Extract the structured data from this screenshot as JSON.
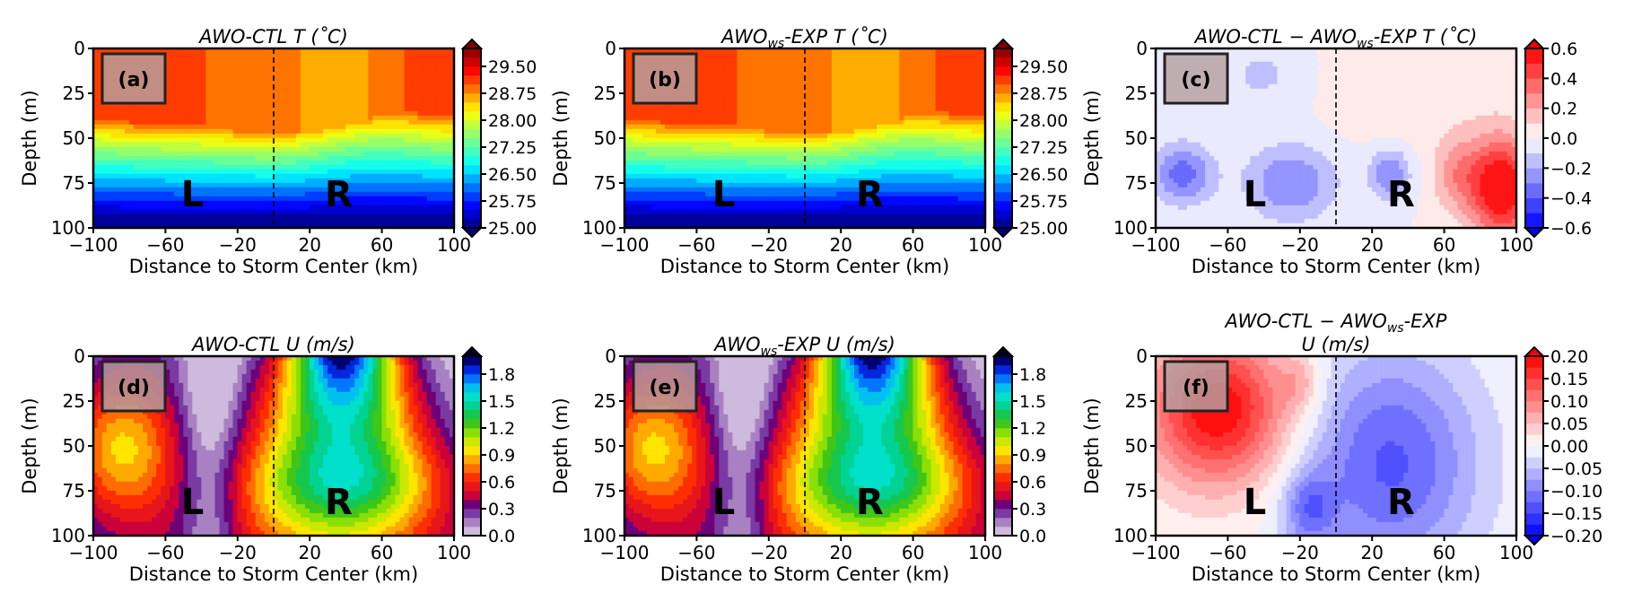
{
  "figure": {
    "xlabel": "Distance to Storm Center (km)",
    "ylabel": "Depth (m)",
    "x_ticks": [
      "−100",
      "−60",
      "−20",
      "20",
      "60",
      "100"
    ],
    "y_ticks": [
      "0",
      "25",
      "50",
      "75",
      "100"
    ]
  },
  "chart_data": [
    {
      "type": "heatmap",
      "panel_label": "(a)",
      "title": "AWO-CTL  T (˚C)",
      "xlabel": "Distance to Storm Center (km)",
      "ylabel": "Depth (m)",
      "xlim": [
        -100,
        100
      ],
      "ylim": [
        100,
        0
      ],
      "storm_center_line_x": 0,
      "annotations": [
        "L",
        "R"
      ],
      "colorbar": {
        "min": 25.0,
        "max": 30.0,
        "extend": "both",
        "colormap": "jet",
        "tick_values": [
          25.0,
          25.75,
          26.5,
          27.25,
          28.0,
          28.75,
          29.5
        ],
        "tick_labels": [
          "25.00",
          "25.75",
          "26.50",
          "27.25",
          "28.00",
          "28.75",
          "29.50"
        ]
      },
      "field_description": "mixed layer ~28.9–29.3 above ~40 m, strong thermocline cooling to ~25 at 100 m"
    },
    {
      "type": "heatmap",
      "panel_label": "(b)",
      "title": "AWOws-EXP T (˚C)",
      "xlabel": "Distance to Storm Center (km)",
      "ylabel": "Depth (m)",
      "xlim": [
        -100,
        100
      ],
      "ylim": [
        100,
        0
      ],
      "storm_center_line_x": 0,
      "annotations": [
        "L",
        "R"
      ],
      "colorbar": {
        "min": 25.0,
        "max": 30.0,
        "extend": "both",
        "colormap": "jet",
        "tick_values": [
          25.0,
          25.75,
          26.5,
          27.25,
          28.0,
          28.75,
          29.5
        ],
        "tick_labels": [
          "25.00",
          "25.75",
          "26.50",
          "27.25",
          "28.00",
          "28.75",
          "29.50"
        ]
      },
      "field_description": "nearly identical to (a)"
    },
    {
      "type": "heatmap",
      "panel_label": "(c)",
      "title": "AWO-CTL − AWOws-EXP T (˚C)",
      "xlabel": "Distance to Storm Center (km)",
      "ylabel": "Depth (m)",
      "xlim": [
        -100,
        100
      ],
      "ylim": [
        100,
        0
      ],
      "storm_center_line_x": 0,
      "annotations": [
        "L",
        "R"
      ],
      "colorbar": {
        "min": -0.6,
        "max": 0.6,
        "extend": "both",
        "colormap": "bwr",
        "tick_values": [
          -0.6,
          -0.4,
          -0.2,
          0.0,
          0.2,
          0.4,
          0.6
        ],
        "tick_labels": [
          "−0.6",
          "−0.4",
          "−0.2",
          "0.0",
          "0.2",
          "0.4",
          "0.6"
        ]
      },
      "field_description": "small negative differences left of center near 60–90 m, positive up to ~0.6 at x≈80–100 km, 60–100 m"
    },
    {
      "type": "heatmap",
      "panel_label": "(d)",
      "title": "AWO-CTL U (m/s)",
      "xlabel": "Distance to Storm Center (km)",
      "ylabel": "Depth (m)",
      "xlim": [
        -100,
        100
      ],
      "ylim": [
        100,
        0
      ],
      "storm_center_line_x": 0,
      "annotations": [
        "L",
        "R"
      ],
      "colorbar": {
        "min": 0.0,
        "max": 2.0,
        "extend": "max",
        "colormap": "ncl_rainbow_reversed",
        "tick_values": [
          0.0,
          0.3,
          0.6,
          0.9,
          1.2,
          1.5,
          1.8
        ],
        "tick_labels": [
          "0.0",
          "0.3",
          "0.6",
          "0.9",
          "1.2",
          "1.5",
          "1.8"
        ]
      },
      "field_description": "max ~1.9 m/s near surface at x≈40 km, decreasing with depth; ~0.7 m/s left of center at 50 m"
    },
    {
      "type": "heatmap",
      "panel_label": "(e)",
      "title": "AWOws-EXP U (m/s)",
      "xlabel": "Distance to Storm Center (km)",
      "ylabel": "Depth (m)",
      "xlim": [
        -100,
        100
      ],
      "ylim": [
        100,
        0
      ],
      "storm_center_line_x": 0,
      "annotations": [
        "L",
        "R"
      ],
      "colorbar": {
        "min": 0.0,
        "max": 2.0,
        "extend": "max",
        "colormap": "ncl_rainbow_reversed",
        "tick_values": [
          0.0,
          0.3,
          0.6,
          0.9,
          1.2,
          1.5,
          1.8
        ],
        "tick_labels": [
          "0.0",
          "0.3",
          "0.6",
          "0.9",
          "1.2",
          "1.5",
          "1.8"
        ]
      },
      "field_description": "nearly identical to (d)"
    },
    {
      "type": "heatmap",
      "panel_label": "(f)",
      "title": "AWO-CTL − AWOws-EXP",
      "title_line2": "U (m/s)",
      "xlabel": "Distance to Storm Center (km)",
      "ylabel": "Depth (m)",
      "xlim": [
        -100,
        100
      ],
      "ylim": [
        100,
        0
      ],
      "storm_center_line_x": 0,
      "annotations": [
        "L",
        "R"
      ],
      "colorbar": {
        "min": -0.2,
        "max": 0.2,
        "extend": "both",
        "colormap": "bwr",
        "tick_values": [
          -0.2,
          -0.15,
          -0.1,
          -0.05,
          0.0,
          0.05,
          0.1,
          0.15,
          0.2
        ],
        "tick_labels": [
          "−0.20",
          "−0.15",
          "−0.10",
          "−0.05",
          "0.00",
          "0.05",
          "0.10",
          "0.15",
          "0.20"
        ]
      },
      "field_description": "positive ~0.15–0.2 left of center in upper 50 m, negative ~−0.1 to −0.15 right of center"
    }
  ]
}
